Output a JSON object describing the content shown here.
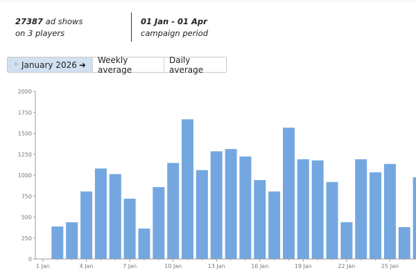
{
  "header": {
    "shows_count": "27387",
    "shows_label": " ad shows",
    "players_label": "on 3 players",
    "period_range": "01 Jan - 01 Apr",
    "period_label": "campaign period"
  },
  "toolbar": {
    "prev_icon": "arrow-left-icon",
    "month_label": "January 2026",
    "next_icon": "arrow-right-icon",
    "weekly_label": "Weekly average",
    "daily_label": "Daily average",
    "active_tab": "month"
  },
  "colors": {
    "bar": "#74a7e0",
    "axis": "#999999",
    "active_button": "#d1e1f2"
  },
  "chart_data": {
    "type": "bar",
    "title": "",
    "xlabel": "",
    "ylabel": "",
    "ylim": [
      0,
      2000
    ],
    "yticks": [
      0,
      250,
      500,
      750,
      1000,
      1250,
      1500,
      1750,
      2000
    ],
    "grid": false,
    "legend": null,
    "categories": [
      "1 Jan",
      "2 Jan",
      "3 Jan",
      "4 Jan",
      "5 Jan",
      "6 Jan",
      "7 Jan",
      "8 Jan",
      "9 Jan",
      "10 Jan",
      "11 Jan",
      "12 Jan",
      "13 Jan",
      "14 Jan",
      "15 Jan",
      "16 Jan",
      "17 Jan",
      "18 Jan",
      "19 Jan",
      "20 Jan",
      "21 Jan",
      "22 Jan",
      "23 Jan",
      "24 Jan",
      "25 Jan",
      "26 Jan",
      "27 Jan"
    ],
    "xtick_labels": [
      "1 Jan",
      "4 Jan",
      "7 Jan",
      "10 Jan",
      "13 Jan",
      "16 Jan",
      "19 Jan",
      "22 Jan",
      "25 Jan"
    ],
    "values": [
      0,
      388,
      438,
      806,
      1080,
      1013,
      720,
      363,
      858,
      1146,
      1667,
      1061,
      1285,
      1312,
      1223,
      941,
      806,
      1567,
      1190,
      1177,
      919,
      440,
      1190,
      1035,
      1135,
      380,
      974
    ]
  }
}
